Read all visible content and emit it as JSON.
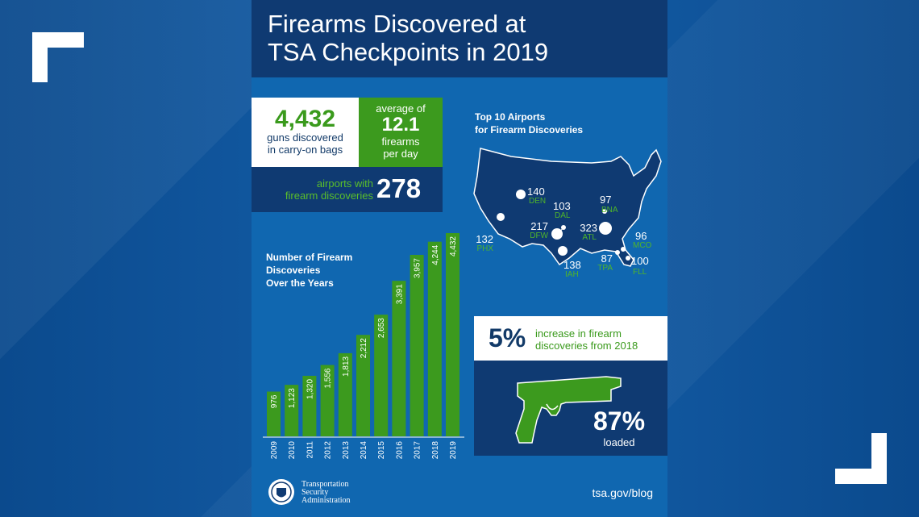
{
  "header": {
    "title_line1": "Firearms Discovered at",
    "title_line2": "TSA Checkpoints in 2019"
  },
  "stats": {
    "guns_total": "4,432",
    "guns_label_line1": "guns discovered",
    "guns_label_line2": "in carry-on bags",
    "avg_label": "average of",
    "avg_value": "12.1",
    "avg_unit_line1": "firearms",
    "avg_unit_line2": "per day",
    "airports_label_line1": "airports with",
    "airports_label_line2": "firearm discoveries",
    "airports_value": "278"
  },
  "airports": {
    "title_line1": "Top 10 Airports",
    "title_line2": "for Firearm Discoveries",
    "items": [
      {
        "count": "140",
        "code": "DEN"
      },
      {
        "count": "103",
        "code": "DAL"
      },
      {
        "count": "97",
        "code": "BNA"
      },
      {
        "count": "217",
        "code": "DFW"
      },
      {
        "count": "323",
        "code": "ATL"
      },
      {
        "count": "132",
        "code": "PHX"
      },
      {
        "count": "96",
        "code": "MCO"
      },
      {
        "count": "138",
        "code": "IAH"
      },
      {
        "count": "87",
        "code": "TPA"
      },
      {
        "count": "100",
        "code": "FLL"
      }
    ]
  },
  "chart_data": {
    "type": "bar",
    "title_line1": "Number of Firearm",
    "title_line2": "Discoveries",
    "title_line3": "Over the Years",
    "categories": [
      "2009",
      "2010",
      "2011",
      "2012",
      "2013",
      "2014",
      "2015",
      "2016",
      "2017",
      "2018",
      "2019"
    ],
    "values": [
      976,
      1123,
      1320,
      1556,
      1813,
      2212,
      2653,
      3391,
      3957,
      4244,
      4432
    ],
    "value_labels": [
      "976",
      "1,123",
      "1,320",
      "1,556",
      "1,813",
      "2,212",
      "2,653",
      "3,391",
      "3,957",
      "4,244",
      "4,432"
    ],
    "ylim": [
      0,
      4432
    ],
    "bar_color": "#3c9a1e"
  },
  "increase": {
    "pct": "5%",
    "label_line1": "increase in firearm",
    "label_line2": "discoveries from 2018"
  },
  "loaded": {
    "pct": "87%",
    "label": "loaded"
  },
  "footer": {
    "org_line1": "Transportation",
    "org_line2": "Security",
    "org_line3": "Administration",
    "url": "tsa.gov/blog"
  },
  "colors": {
    "navy": "#0f3a72",
    "poster_blue": "#1067b0",
    "green": "#3c9a1e",
    "white": "#ffffff"
  }
}
